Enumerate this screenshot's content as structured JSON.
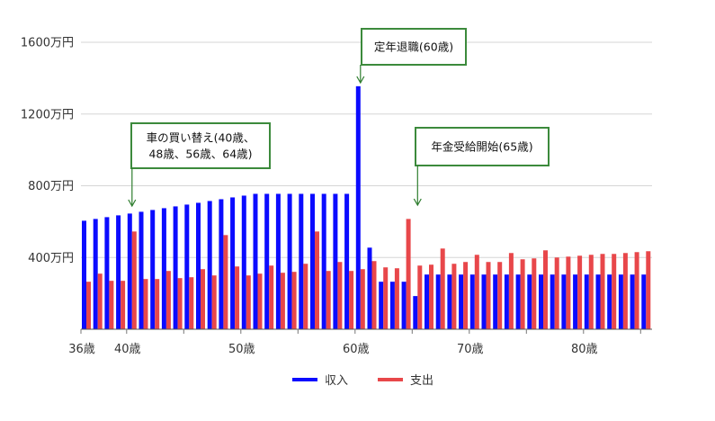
{
  "chart_data": {
    "type": "bar",
    "ages": [
      36,
      37,
      38,
      39,
      40,
      41,
      42,
      43,
      44,
      45,
      46,
      47,
      48,
      49,
      50,
      51,
      52,
      53,
      54,
      55,
      56,
      57,
      58,
      59,
      60,
      61,
      62,
      63,
      64,
      65,
      66,
      67,
      68,
      69,
      70,
      71,
      72,
      73,
      74,
      75,
      76,
      77,
      78,
      79,
      80,
      81,
      82,
      83,
      84,
      85
    ],
    "x_tick_ages": [
      36,
      40,
      50,
      60,
      70,
      80
    ],
    "x_tick_labels": [
      "36歳",
      "40歳",
      "50歳",
      "60歳",
      "70歳",
      "80歳"
    ],
    "ylim": [
      0,
      1600
    ],
    "y_ticks": [
      400,
      800,
      1200,
      1600
    ],
    "y_tick_labels": [
      "400万円",
      "800万円",
      "1200万円",
      "1600万円"
    ],
    "grid": true,
    "legend_position": "bottom",
    "series": [
      {
        "name": "収入",
        "color": "#0b0bff",
        "values": [
          605,
          615,
          625,
          635,
          645,
          655,
          665,
          675,
          685,
          695,
          705,
          715,
          725,
          735,
          745,
          755,
          755,
          755,
          755,
          755,
          755,
          755,
          755,
          755,
          1355,
          455,
          265,
          265,
          265,
          185,
          305,
          305,
          305,
          305,
          305,
          305,
          305,
          305,
          305,
          305,
          305,
          305,
          305,
          305,
          305,
          305,
          305,
          305,
          305,
          305
        ]
      },
      {
        "name": "支出",
        "color": "#e8474a",
        "values": [
          265,
          310,
          270,
          270,
          545,
          280,
          280,
          325,
          285,
          290,
          335,
          300,
          525,
          350,
          300,
          310,
          355,
          315,
          320,
          365,
          545,
          325,
          375,
          325,
          335,
          380,
          345,
          340,
          615,
          355,
          360,
          450,
          365,
          375,
          415,
          375,
          375,
          425,
          390,
          395,
          440,
          400,
          405,
          410,
          415,
          420,
          420,
          425,
          430,
          435
        ]
      }
    ],
    "annotations": [
      {
        "lines": [
          "車の買い替え(40歳、",
          "48歳、56歳、64歳)"
        ],
        "age": 40
      },
      {
        "lines": [
          "定年退職(60歳)"
        ],
        "age": 60
      },
      {
        "lines": [
          "年金受給開始(65歳)"
        ],
        "age": 65
      }
    ]
  },
  "colors": {
    "income": "#0b0bff",
    "expense": "#e8474a",
    "annotation_border": "#3c8a3c",
    "arrow": "#2e7d2e",
    "grid": "#d6d6d6"
  }
}
